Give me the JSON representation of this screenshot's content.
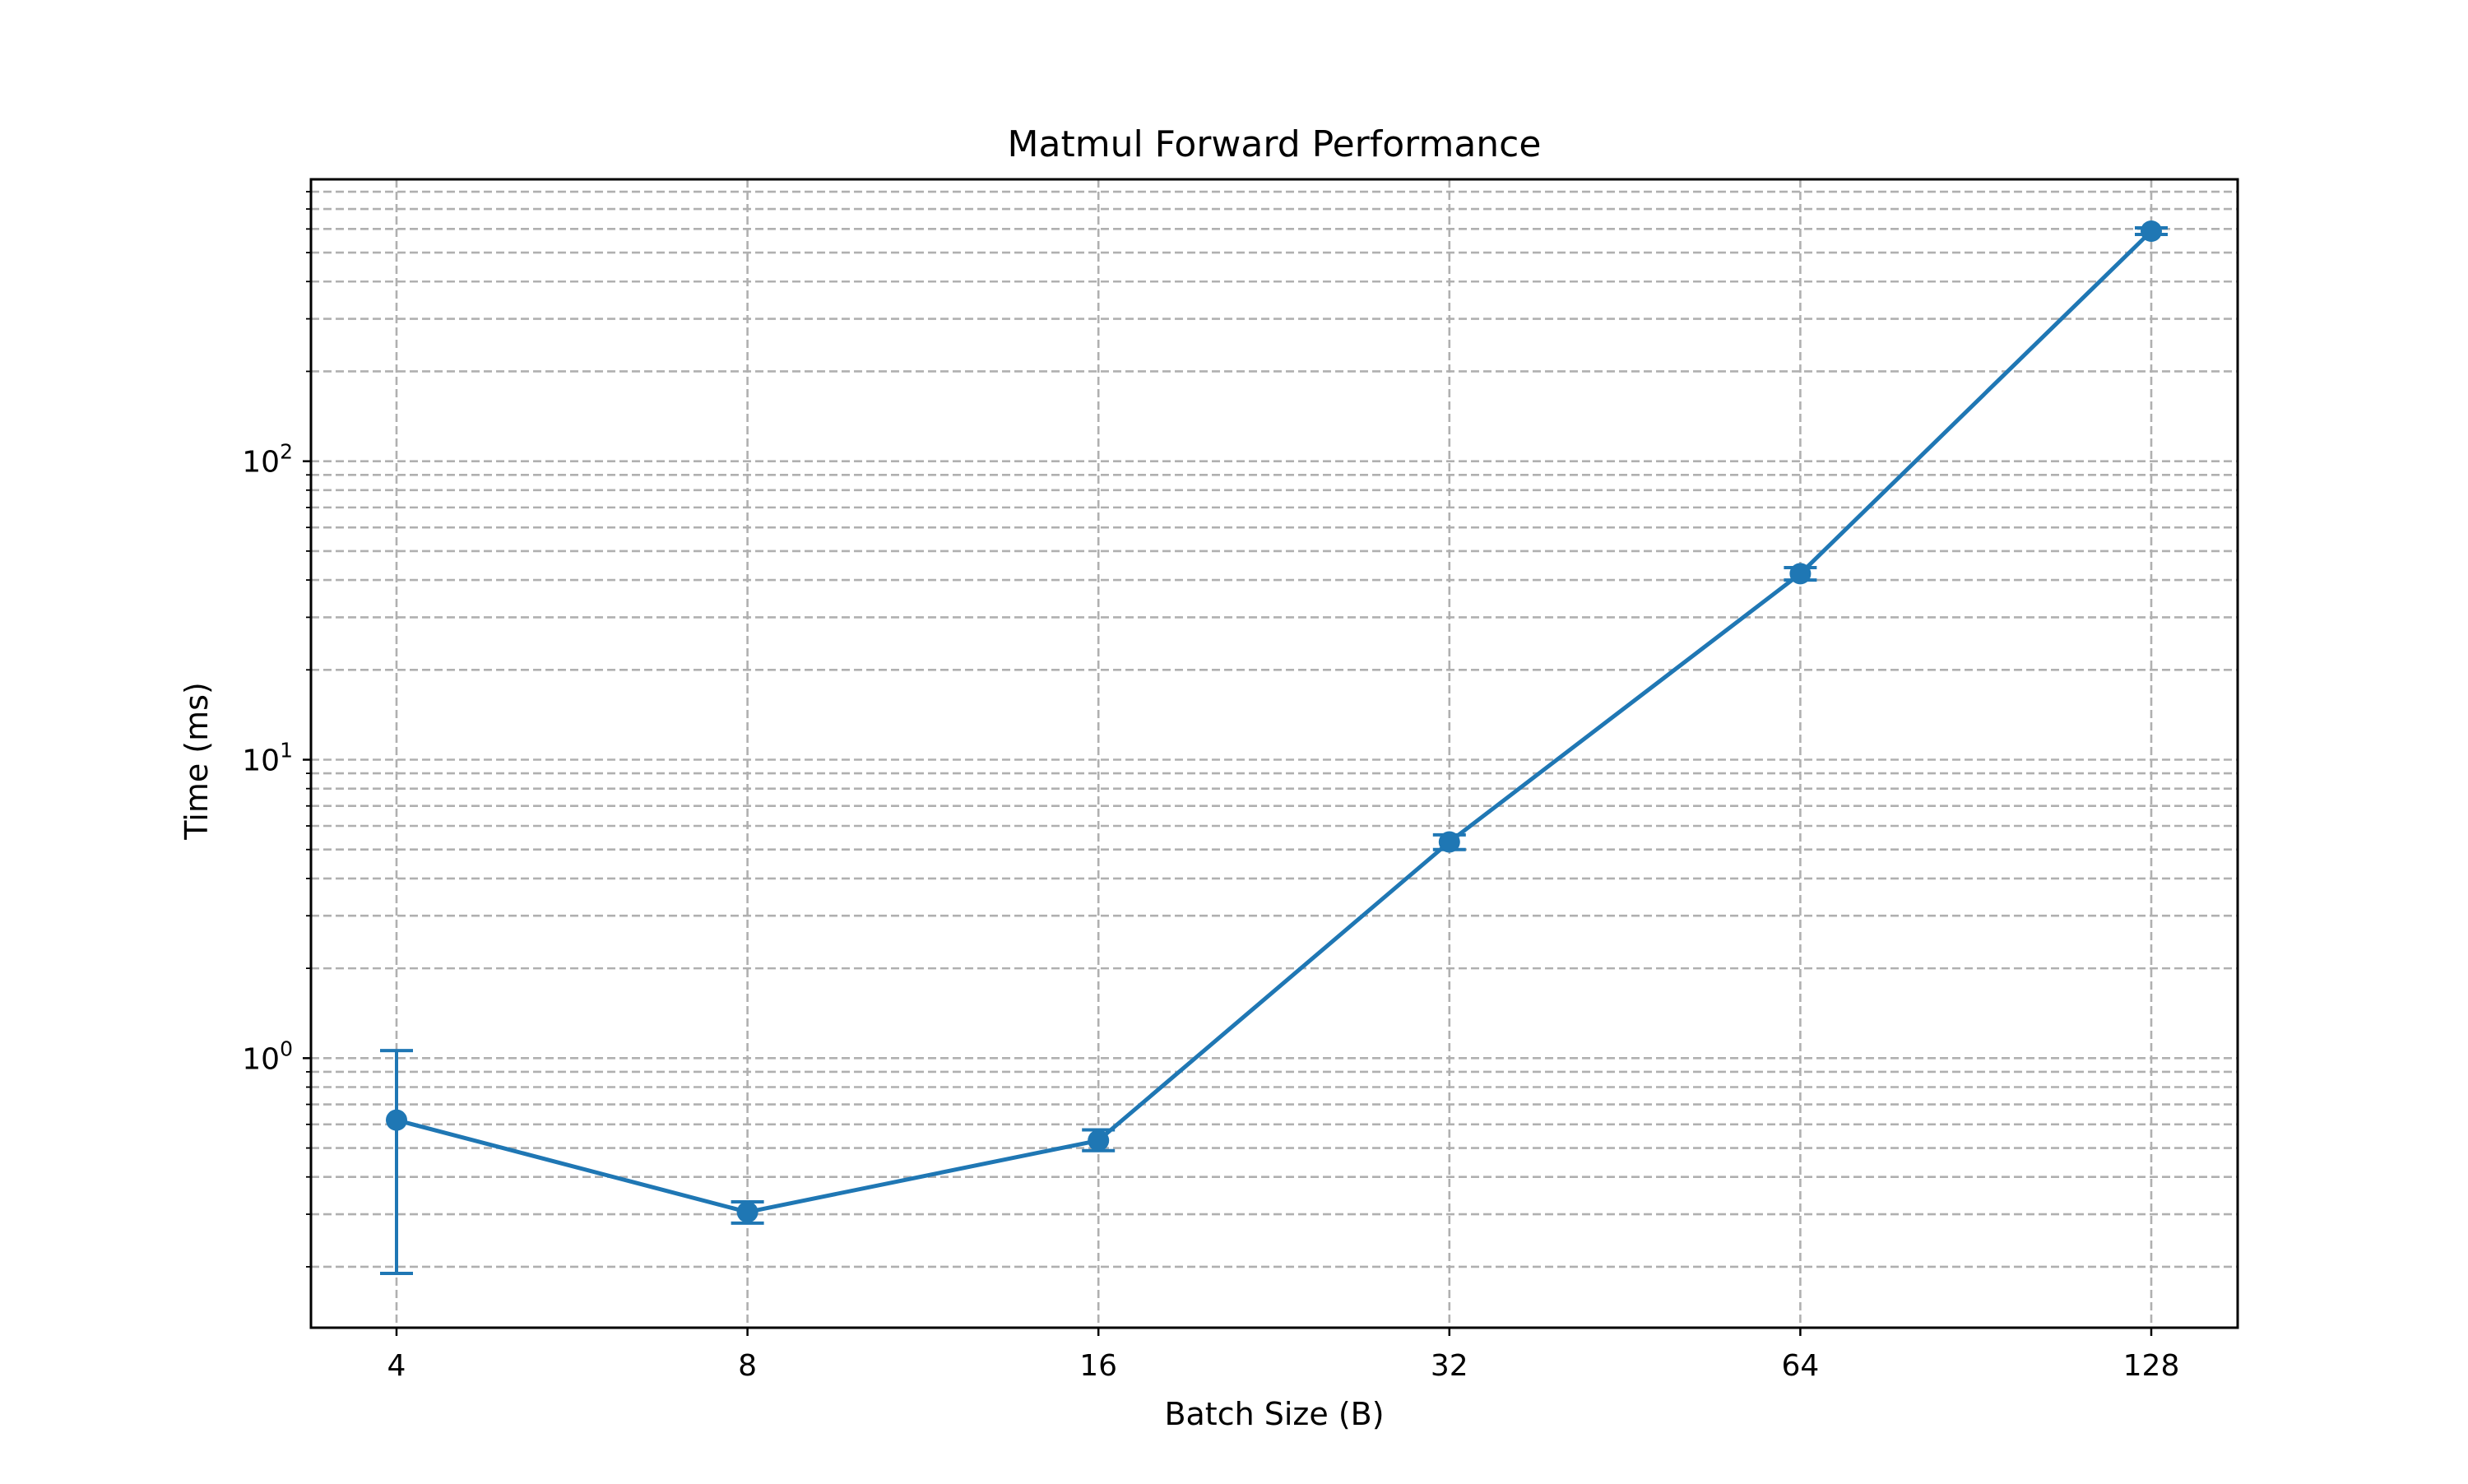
{
  "chart_data": {
    "type": "line",
    "title": "Matmul Forward Performance",
    "xlabel": "Batch Size (B)",
    "ylabel": "Time (ms)",
    "x_scale": "log2",
    "y_scale": "log10",
    "grid": true,
    "grid_style": "dashed",
    "x": [
      4,
      8,
      16,
      32,
      64,
      128
    ],
    "x_tick_labels": [
      "4",
      "8",
      "16",
      "32",
      "64",
      "128"
    ],
    "y_ticks": [
      {
        "base": "10",
        "exp": "0"
      },
      {
        "base": "10",
        "exp": "1"
      },
      {
        "base": "10",
        "exp": "2"
      }
    ],
    "ylim": [
      0.125,
      880
    ],
    "series": [
      {
        "values": [
          0.62,
          0.305,
          0.53,
          5.3,
          42,
          590
        ],
        "error_low": [
          0.19,
          0.28,
          0.49,
          5.0,
          40,
          575
        ],
        "error_high": [
          1.06,
          0.33,
          0.575,
          5.6,
          44,
          605
        ],
        "color": "#1f77b4",
        "marker": "circle"
      }
    ]
  }
}
